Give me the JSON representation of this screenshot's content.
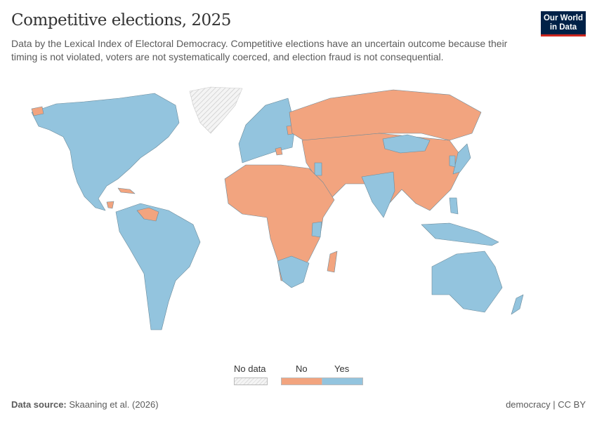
{
  "header": {
    "title": "Competitive elections, 2025",
    "subtitle": "Data by the Lexical Index of Electoral Democracy. Competitive elections have an uncertain outcome because their timing is not violated, voters are not systematically coerced, and election fraud is not consequential.",
    "logo_text": "Our World in Data"
  },
  "legend": {
    "items": [
      {
        "label": "No data",
        "color": "hatched"
      },
      {
        "label": "No",
        "color": "#f2a47f"
      },
      {
        "label": "Yes",
        "color": "#93c4de"
      }
    ]
  },
  "colors": {
    "yes": "#93c4de",
    "no": "#f2a47f",
    "no_data": "#eeeeee",
    "border": "#6b8a9a"
  },
  "footer": {
    "source_label": "Data source:",
    "source_value": "Skaaning et al. (2026)",
    "right": "democracy | CC BY"
  }
}
